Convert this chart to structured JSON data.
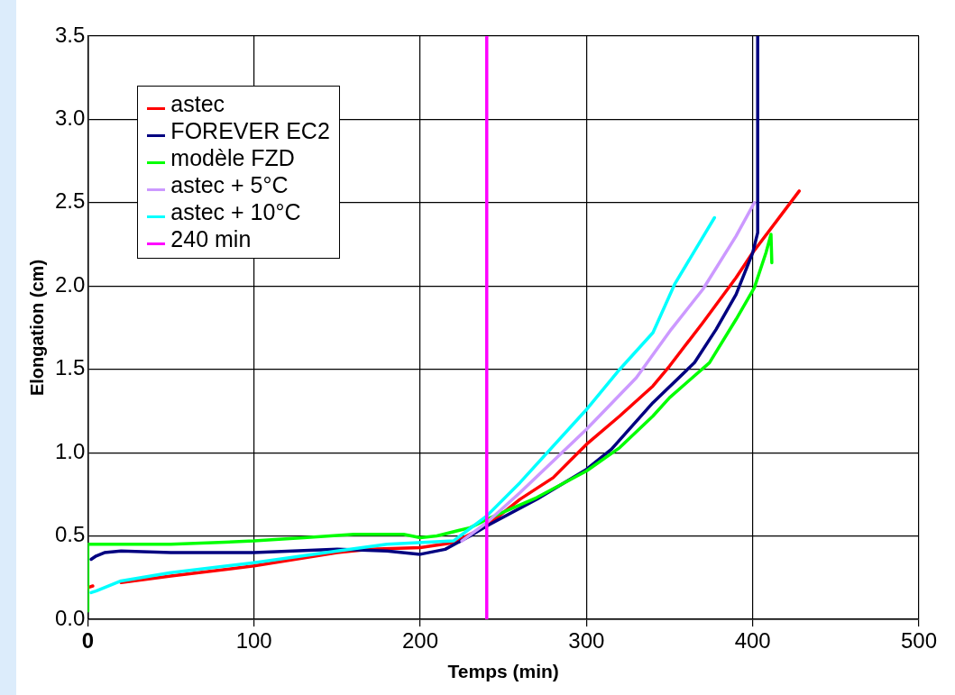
{
  "chart_data": {
    "type": "line",
    "xlabel": "Temps (min)",
    "ylabel": "Elongation (cm)",
    "xlim": [
      0,
      500
    ],
    "xticks": [
      0,
      100,
      200,
      300,
      400,
      500
    ],
    "ylim": [
      0,
      3.5
    ],
    "yticks": [
      {
        "value": 0,
        "label": "0.0"
      },
      {
        "value": 0.5,
        "label": "0.5"
      },
      {
        "value": 1,
        "label": "1.0"
      },
      {
        "value": 1.5,
        "label": "1.5"
      },
      {
        "value": 2,
        "label": "2.0"
      },
      {
        "value": 2.5,
        "label": "2.5"
      },
      {
        "value": 3,
        "label": "3.0"
      },
      {
        "value": 3.5,
        "label": "3.5"
      }
    ],
    "grid": true,
    "legend": "top left",
    "marker": "none",
    "series": [
      {
        "name": "astec",
        "color": "#ff0000",
        "x": [
          0,
          3,
          10,
          20,
          50,
          100,
          150,
          170,
          200,
          220,
          240,
          260,
          280,
          300,
          320,
          340,
          350,
          370,
          390,
          400,
          428
        ],
        "values": [
          0.19,
          0.2,
          null,
          0.22,
          0.26,
          0.32,
          0.4,
          0.42,
          0.43,
          0.46,
          0.56,
          0.72,
          0.85,
          1.05,
          1.22,
          1.4,
          1.52,
          1.78,
          2.05,
          2.2,
          2.57
        ]
      },
      {
        "name": "FOREVER EC2",
        "color": "#000080",
        "x": [
          2,
          5,
          10,
          20,
          50,
          100,
          150,
          180,
          200,
          215,
          230,
          240,
          270,
          300,
          315,
          340,
          365,
          378,
          390,
          400,
          403,
          403
        ],
        "values": [
          0.36,
          0.38,
          0.4,
          0.41,
          0.4,
          0.4,
          0.42,
          0.41,
          0.39,
          0.42,
          0.5,
          0.56,
          0.72,
          0.9,
          1.02,
          1.3,
          1.54,
          1.74,
          1.95,
          2.2,
          2.32,
          3.5
        ]
      },
      {
        "name": "modèle FZD",
        "color": "#00ff00",
        "x": [
          0,
          0,
          10,
          50,
          100,
          130,
          160,
          190,
          200,
          210,
          230,
          240,
          270,
          300,
          320,
          340,
          350,
          374,
          390,
          401,
          408,
          411,
          411.5
        ],
        "values": [
          0.05,
          0.45,
          0.45,
          0.45,
          0.47,
          0.49,
          0.51,
          0.51,
          0.49,
          0.5,
          0.55,
          0.6,
          0.73,
          0.89,
          1.03,
          1.22,
          1.33,
          1.54,
          1.8,
          1.99,
          2.2,
          2.31,
          2.14
        ]
      },
      {
        "name": "astec + 5°C",
        "color": "#cc99ff",
        "x": [
          225,
          240,
          260,
          300,
          330,
          351,
          370,
          390,
          401
        ],
        "values": [
          0.47,
          0.58,
          0.76,
          1.14,
          1.45,
          1.74,
          1.98,
          2.3,
          2.5
        ]
      },
      {
        "name": "astec + 10°C",
        "color": "#00ffff",
        "x": [
          2,
          5,
          10,
          20,
          50,
          100,
          150,
          180,
          220,
          240,
          260,
          301,
          320,
          340,
          353,
          377
        ],
        "values": [
          0.16,
          0.17,
          0.19,
          0.23,
          0.28,
          0.34,
          0.41,
          0.45,
          0.47,
          0.62,
          0.82,
          1.27,
          1.5,
          1.72,
          2.01,
          2.41
        ]
      },
      {
        "name": "240 min",
        "color": "#ff00ff",
        "x": [
          240,
          240
        ],
        "values": [
          0,
          3.5
        ]
      }
    ]
  }
}
